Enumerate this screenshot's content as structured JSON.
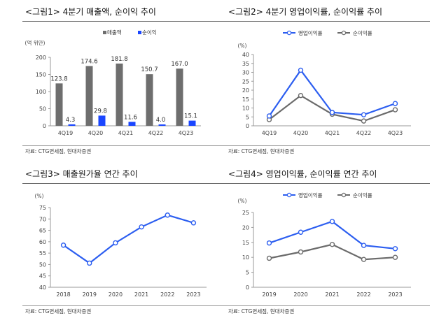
{
  "colors": {
    "bar_gray": "#6e6e6e",
    "bar_blue": "#1a46ff",
    "line_blue": "#2c5ef0",
    "line_gray": "#6b6b6b",
    "axis": "#999999"
  },
  "chart_data": [
    {
      "id": "fig1",
      "type": "bar",
      "title": "<그림1> 4분기 매출액, 순이익 추이",
      "unit": "(억 위안)",
      "source": "자료: CTG면세점, 현대차증권",
      "categories": [
        "4Q19",
        "4Q20",
        "4Q21",
        "4Q22",
        "4Q23"
      ],
      "series": [
        {
          "name": "매출액",
          "values": [
            123.8,
            174.6,
            181.8,
            150.7,
            167.0
          ],
          "labels": [
            "123.8",
            "174.6",
            "181.8",
            "150.7",
            "167.0"
          ],
          "color": "#6e6e6e"
        },
        {
          "name": "순이익",
          "values": [
            4.3,
            29.8,
            11.6,
            4.0,
            15.1
          ],
          "labels": [
            "4.3",
            "29.8",
            "11.6",
            "4.0",
            "15.1"
          ],
          "color": "#1a46ff"
        }
      ],
      "ylim": [
        0,
        200
      ],
      "yticks": [
        0,
        50,
        100,
        150,
        200
      ],
      "legend": "top-center",
      "grid": false
    },
    {
      "id": "fig2",
      "type": "line",
      "title": "<그림2> 4분기 영업이익률, 순이익률 추이",
      "unit": "(%)",
      "source": "자료: CTG면세점, 현대차증권",
      "categories": [
        "4Q19",
        "4Q20",
        "4Q21",
        "4Q22",
        "4Q23"
      ],
      "series": [
        {
          "name": "영업이익률",
          "values": [
            5.5,
            31.2,
            7.5,
            6.2,
            12.5
          ],
          "color": "#2c5ef0"
        },
        {
          "name": "순이익률",
          "values": [
            3.5,
            17.0,
            6.5,
            2.7,
            9.0
          ],
          "color": "#6b6b6b"
        }
      ],
      "ylim": [
        0,
        40
      ],
      "yticks": [
        0,
        5,
        10,
        15,
        20,
        25,
        30,
        35,
        40
      ],
      "legend": "top-center",
      "grid": false
    },
    {
      "id": "fig3",
      "type": "line",
      "title": "<그림3> 매출원가율 연간 추이",
      "unit": "(%)",
      "source": "자료: CTG면세점, 현대차증권",
      "categories": [
        "2018",
        "2019",
        "2020",
        "2021",
        "2022",
        "2023"
      ],
      "series": [
        {
          "values": [
            58.5,
            50.6,
            59.5,
            66.5,
            71.7,
            68.3
          ],
          "color": "#2c5ef0"
        }
      ],
      "ylim": [
        40,
        75
      ],
      "yticks": [
        40,
        45,
        50,
        55,
        60,
        65,
        70,
        75
      ],
      "grid": false
    },
    {
      "id": "fig4",
      "type": "line",
      "title": "<그림4> 영업이익률, 순이익률 연간 추이",
      "unit": "(%)",
      "source": "자료: CTG면세점, 현대차증권",
      "categories": [
        "2019",
        "2020",
        "2021",
        "2022",
        "2023"
      ],
      "series": [
        {
          "name": "영업이익률",
          "values": [
            14.8,
            18.4,
            22.0,
            14.0,
            12.9
          ],
          "color": "#2c5ef0"
        },
        {
          "name": "순이익률",
          "values": [
            9.7,
            11.8,
            14.3,
            9.3,
            10.0
          ],
          "color": "#6b6b6b"
        }
      ],
      "ylim": [
        0,
        25
      ],
      "yticks": [
        0,
        5,
        10,
        15,
        20,
        25
      ],
      "legend": "top-center",
      "grid": false
    }
  ]
}
